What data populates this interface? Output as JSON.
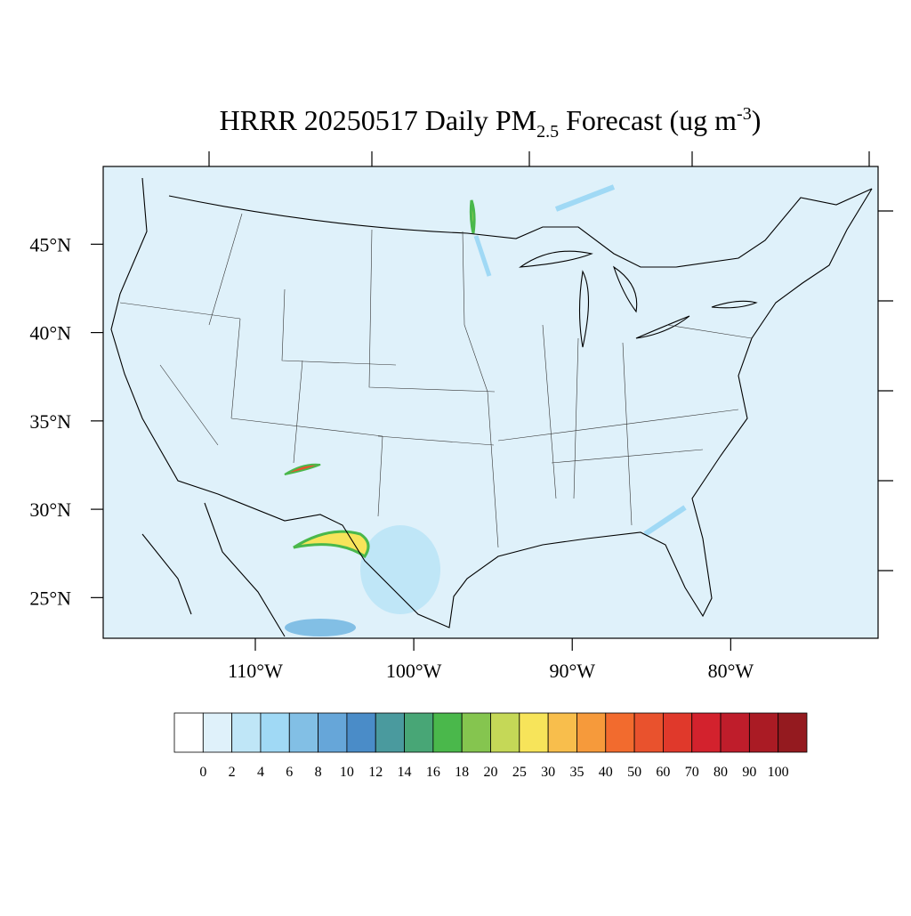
{
  "chart_data": {
    "type": "map",
    "title": {
      "main": "HRRR 20250517 Daily PM",
      "subscript": "2.5",
      "middle": " Forecast (ug m",
      "superscript": "-3",
      "end": ")"
    },
    "lonlim": [
      -119.6,
      -70.7
    ],
    "latlim": [
      22.7,
      49.4
    ],
    "lat_ticks": [
      {
        "value": 25,
        "label": "25°N"
      },
      {
        "value": 30,
        "label": "30°N"
      },
      {
        "value": 35,
        "label": "35°N"
      },
      {
        "value": 40,
        "label": "40°N"
      },
      {
        "value": 45,
        "label": "45°N"
      }
    ],
    "lon_ticks": [
      {
        "value": -110,
        "label": "110°W"
      },
      {
        "value": -100,
        "label": "100°W"
      },
      {
        "value": -90,
        "label": "90°W"
      },
      {
        "value": -80,
        "label": "80°W"
      }
    ],
    "background_color": "#dff1fa",
    "colorbar": {
      "levels": [
        0,
        2,
        4,
        6,
        8,
        10,
        12,
        14,
        16,
        18,
        20,
        25,
        30,
        35,
        40,
        50,
        60,
        70,
        80,
        90,
        100
      ],
      "colors": [
        "#ffffff",
        "#dff1fa",
        "#bfe6f7",
        "#a0d9f5",
        "#82bfe5",
        "#66a6d9",
        "#4a8cc8",
        "#4a9a9e",
        "#48a676",
        "#4ab84b",
        "#85c54f",
        "#c5d857",
        "#f7e45a",
        "#f8be4c",
        "#f69a3b",
        "#f26b2e",
        "#e9522d",
        "#e0392b",
        "#d3222d",
        "#bf1d2b",
        "#aa1b24",
        "#941a1f"
      ]
    }
  }
}
